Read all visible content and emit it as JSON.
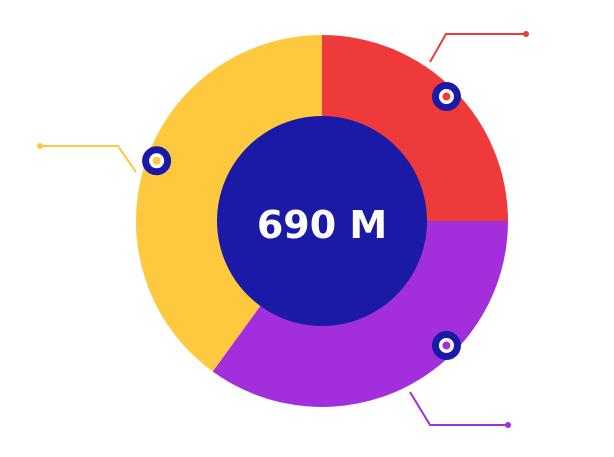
{
  "chart_data": {
    "type": "pie",
    "center_label": "690 M",
    "slices": [
      {
        "value": 25,
        "color": "#EE3A3A"
      },
      {
        "value": 35,
        "color": "#A22EDC"
      },
      {
        "value": 40,
        "color": "#FFC93F"
      }
    ],
    "center_color": "#1A1AA6",
    "marker_color": "#1A1AA6"
  }
}
